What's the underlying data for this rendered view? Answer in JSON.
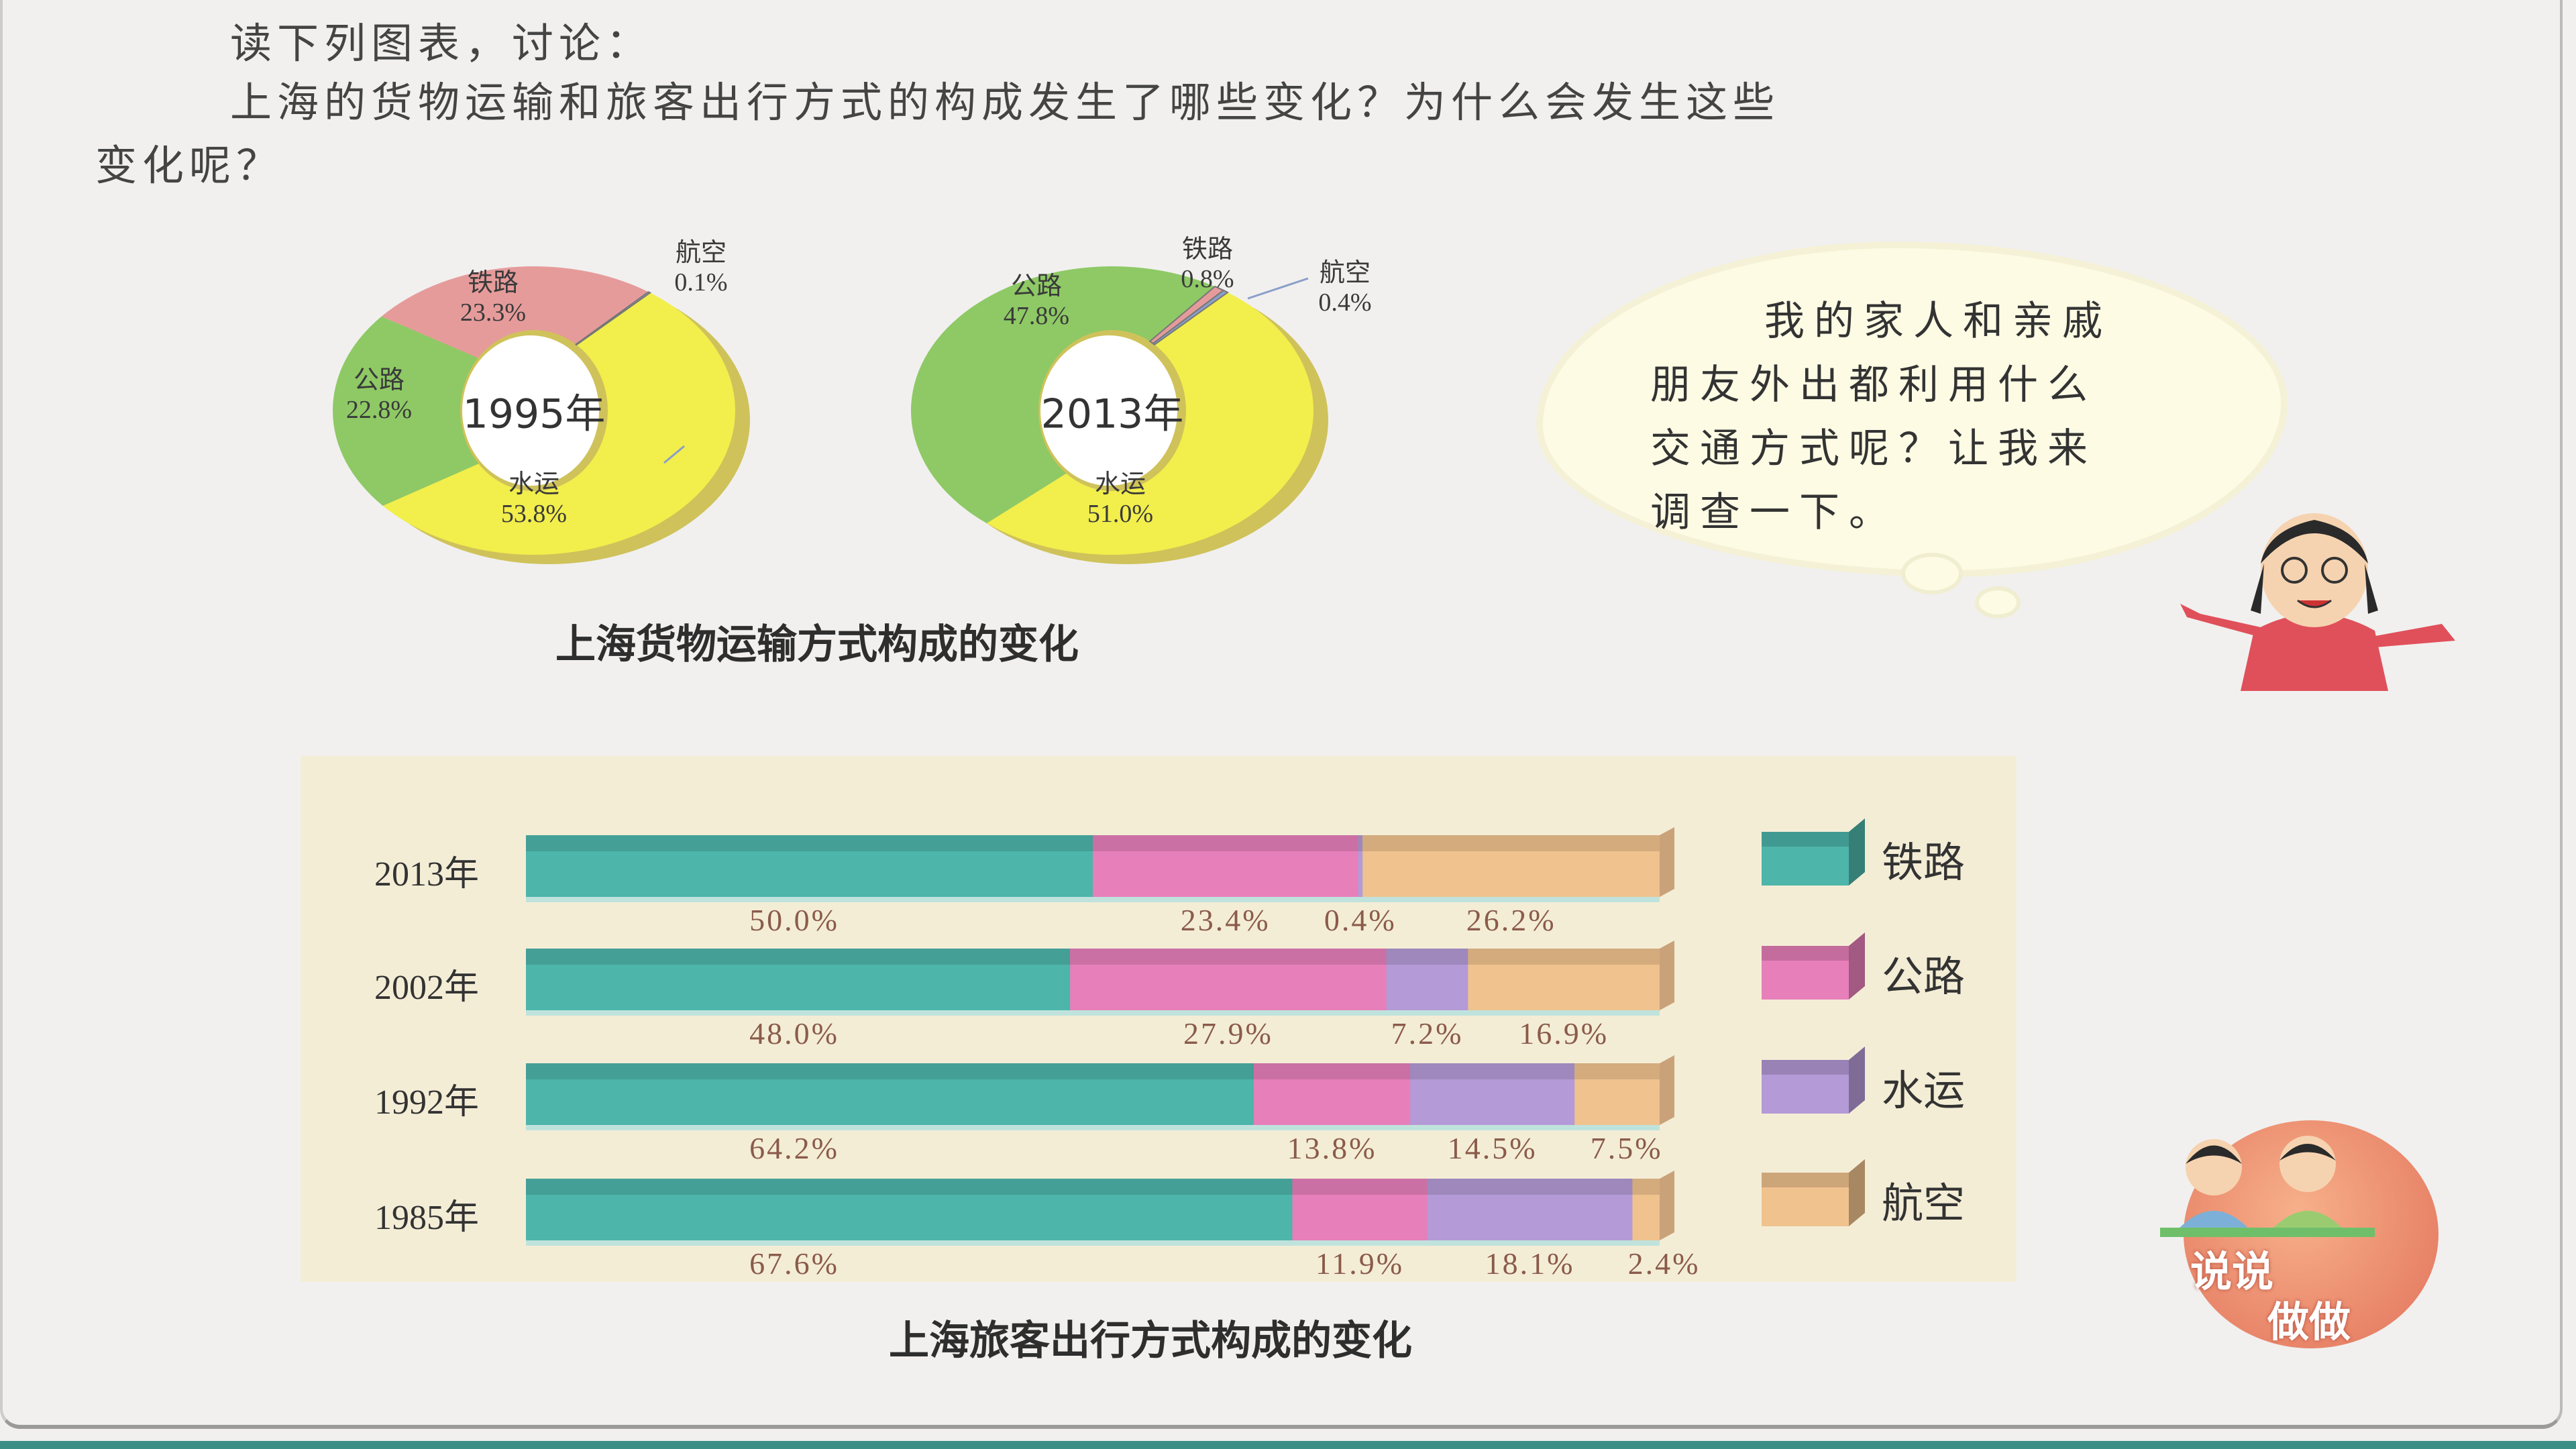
{
  "intro": {
    "line1": "读下列图表，讨论：",
    "line2": "上海的货物运输和旅客出行方式的构成发生了哪些变化？为什么会发生这些",
    "line3": "变化呢？"
  },
  "bubble": {
    "lines": [
      "我的家人和亲戚",
      "朋友外出都利用什么",
      "交通方式呢？让我来",
      "调查一下。"
    ]
  },
  "badge": {
    "line1": "说说",
    "line2": "做做"
  },
  "chart_data": [
    {
      "type": "pie",
      "variant": "donut",
      "title": "上海货物运输方式构成的变化",
      "center_label": "1995年",
      "slices": [
        {
          "name": "水运",
          "value": 53.8,
          "label": "53.8%",
          "color": "#f2ee4c"
        },
        {
          "name": "公路",
          "value": 22.8,
          "label": "22.8%",
          "color": "#8ec965"
        },
        {
          "name": "铁路",
          "value": 23.3,
          "label": "23.3%",
          "color": "#e69b9b"
        },
        {
          "name": "航空",
          "value": 0.1,
          "label": "0.1%",
          "color": "#8a9fc8"
        }
      ]
    },
    {
      "type": "pie",
      "variant": "donut",
      "center_label": "2013年",
      "slices": [
        {
          "name": "水运",
          "value": 51.0,
          "label": "51.0%",
          "color": "#f2ee4c"
        },
        {
          "name": "公路",
          "value": 47.8,
          "label": "47.8%",
          "color": "#8ec965"
        },
        {
          "name": "铁路",
          "value": 0.8,
          "label": "0.8%",
          "color": "#e69b9b"
        },
        {
          "name": "航空",
          "value": 0.4,
          "label": "0.4%",
          "color": "#8a9fc8"
        }
      ]
    },
    {
      "type": "bar",
      "orientation": "horizontal",
      "stacked": true,
      "title": "上海旅客出行方式构成的变化",
      "categories": [
        "2013年",
        "2002年",
        "1992年",
        "1985年"
      ],
      "series": [
        {
          "name": "铁路",
          "color": "#4db5aa",
          "values": [
            50.0,
            48.0,
            64.2,
            67.6
          ],
          "labels": [
            "50.0%",
            "48.0%",
            "64.2%",
            "67.6%"
          ]
        },
        {
          "name": "公路",
          "color": "#e77fba",
          "values": [
            23.4,
            27.9,
            13.8,
            11.9
          ],
          "labels": [
            "23.4%",
            "27.9%",
            "13.8%",
            "11.9%"
          ]
        },
        {
          "name": "水运",
          "color": "#b49ad6",
          "values": [
            0.4,
            7.2,
            14.5,
            18.1
          ],
          "labels": [
            "0.4%",
            "7.2%",
            "14.5%",
            "18.1%"
          ]
        },
        {
          "name": "航空",
          "color": "#f0c28e",
          "values": [
            26.2,
            16.9,
            7.5,
            2.4
          ],
          "labels": [
            "26.2%",
            "16.9%",
            "7.5%",
            "2.4%"
          ]
        }
      ],
      "xlim": [
        0,
        100
      ],
      "legend": "right"
    }
  ]
}
